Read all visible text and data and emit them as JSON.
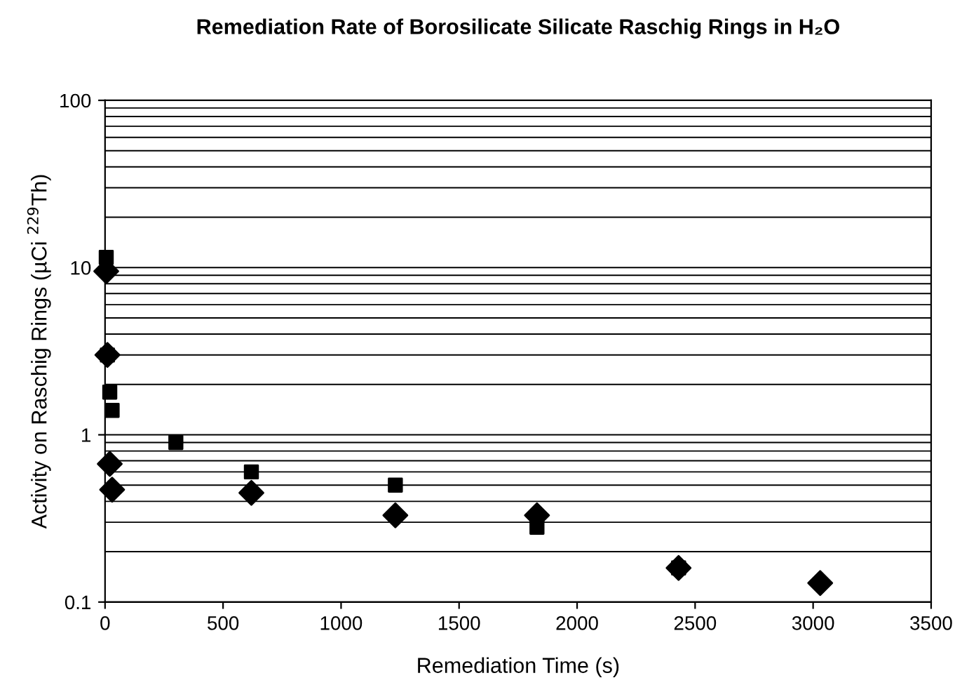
{
  "chart_data": {
    "type": "scatter",
    "title": "Remediation Rate of Borosilicate Silicate Raschig Rings in H₂O",
    "xlabel": "Remediation Time (s)",
    "ylabel": "Activity on Raschig Rings (µCi $^{229}$Th)",
    "series": [
      {
        "color": "#000000",
        "marker": "diamond",
        "x": [
          5,
          10,
          20,
          30,
          620,
          1230,
          1830,
          2430,
          3030
        ],
        "values": [
          9.5,
          3.0,
          0.67,
          0.47,
          0.45,
          0.33,
          0.33,
          0.16,
          0.13
        ]
      },
      {
        "color": "#000000",
        "marker": "square",
        "x": [
          5,
          10,
          20,
          30,
          300,
          620,
          1230,
          1830,
          2430
        ],
        "values": [
          11.5,
          3.0,
          1.8,
          1.4,
          0.9,
          0.6,
          0.5,
          0.28,
          0.16
        ]
      }
    ],
    "log": "y",
    "xlim": [
      0,
      3500
    ],
    "xticks": [
      0,
      500,
      1000,
      1500,
      2000,
      2500,
      3000,
      3500
    ],
    "ylim": [
      0.1,
      100
    ],
    "yticks": [
      0.1,
      1,
      10,
      100
    ],
    "grid": "y",
    "legend": false
  }
}
